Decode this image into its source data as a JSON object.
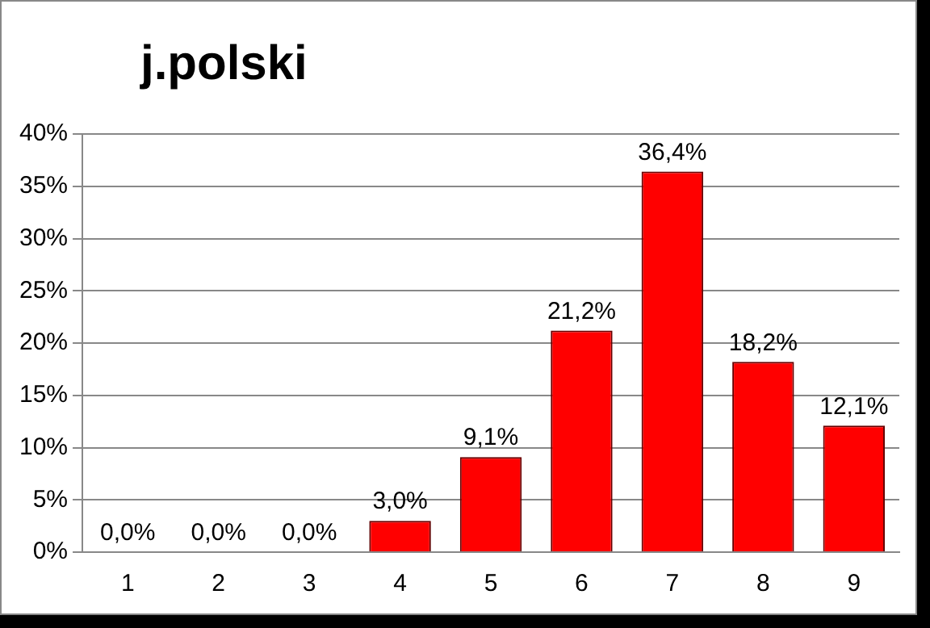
{
  "chart_data": {
    "type": "bar",
    "title": "j.polski",
    "categories": [
      "1",
      "2",
      "3",
      "4",
      "5",
      "6",
      "7",
      "8",
      "9"
    ],
    "values": [
      0,
      0,
      0,
      3.0,
      9.1,
      21.2,
      36.4,
      18.2,
      12.1
    ],
    "value_labels": [
      "0,0%",
      "0,0%",
      "0,0%",
      "3,0%",
      "9,1%",
      "21,2%",
      "36,4%",
      "18,2%",
      "12,1%"
    ],
    "color": "#ff0000",
    "ylim": [
      0,
      40
    ],
    "yticks": [
      {
        "value": 0,
        "label": "0%"
      },
      {
        "value": 5,
        "label": "5%"
      },
      {
        "value": 10,
        "label": "10%"
      },
      {
        "value": 15,
        "label": "15%"
      },
      {
        "value": 20,
        "label": "20%"
      },
      {
        "value": 25,
        "label": "25%"
      },
      {
        "value": 30,
        "label": "30%"
      },
      {
        "value": 35,
        "label": "35%"
      },
      {
        "value": 40,
        "label": "40%"
      }
    ],
    "grid": "y",
    "legend": false
  }
}
